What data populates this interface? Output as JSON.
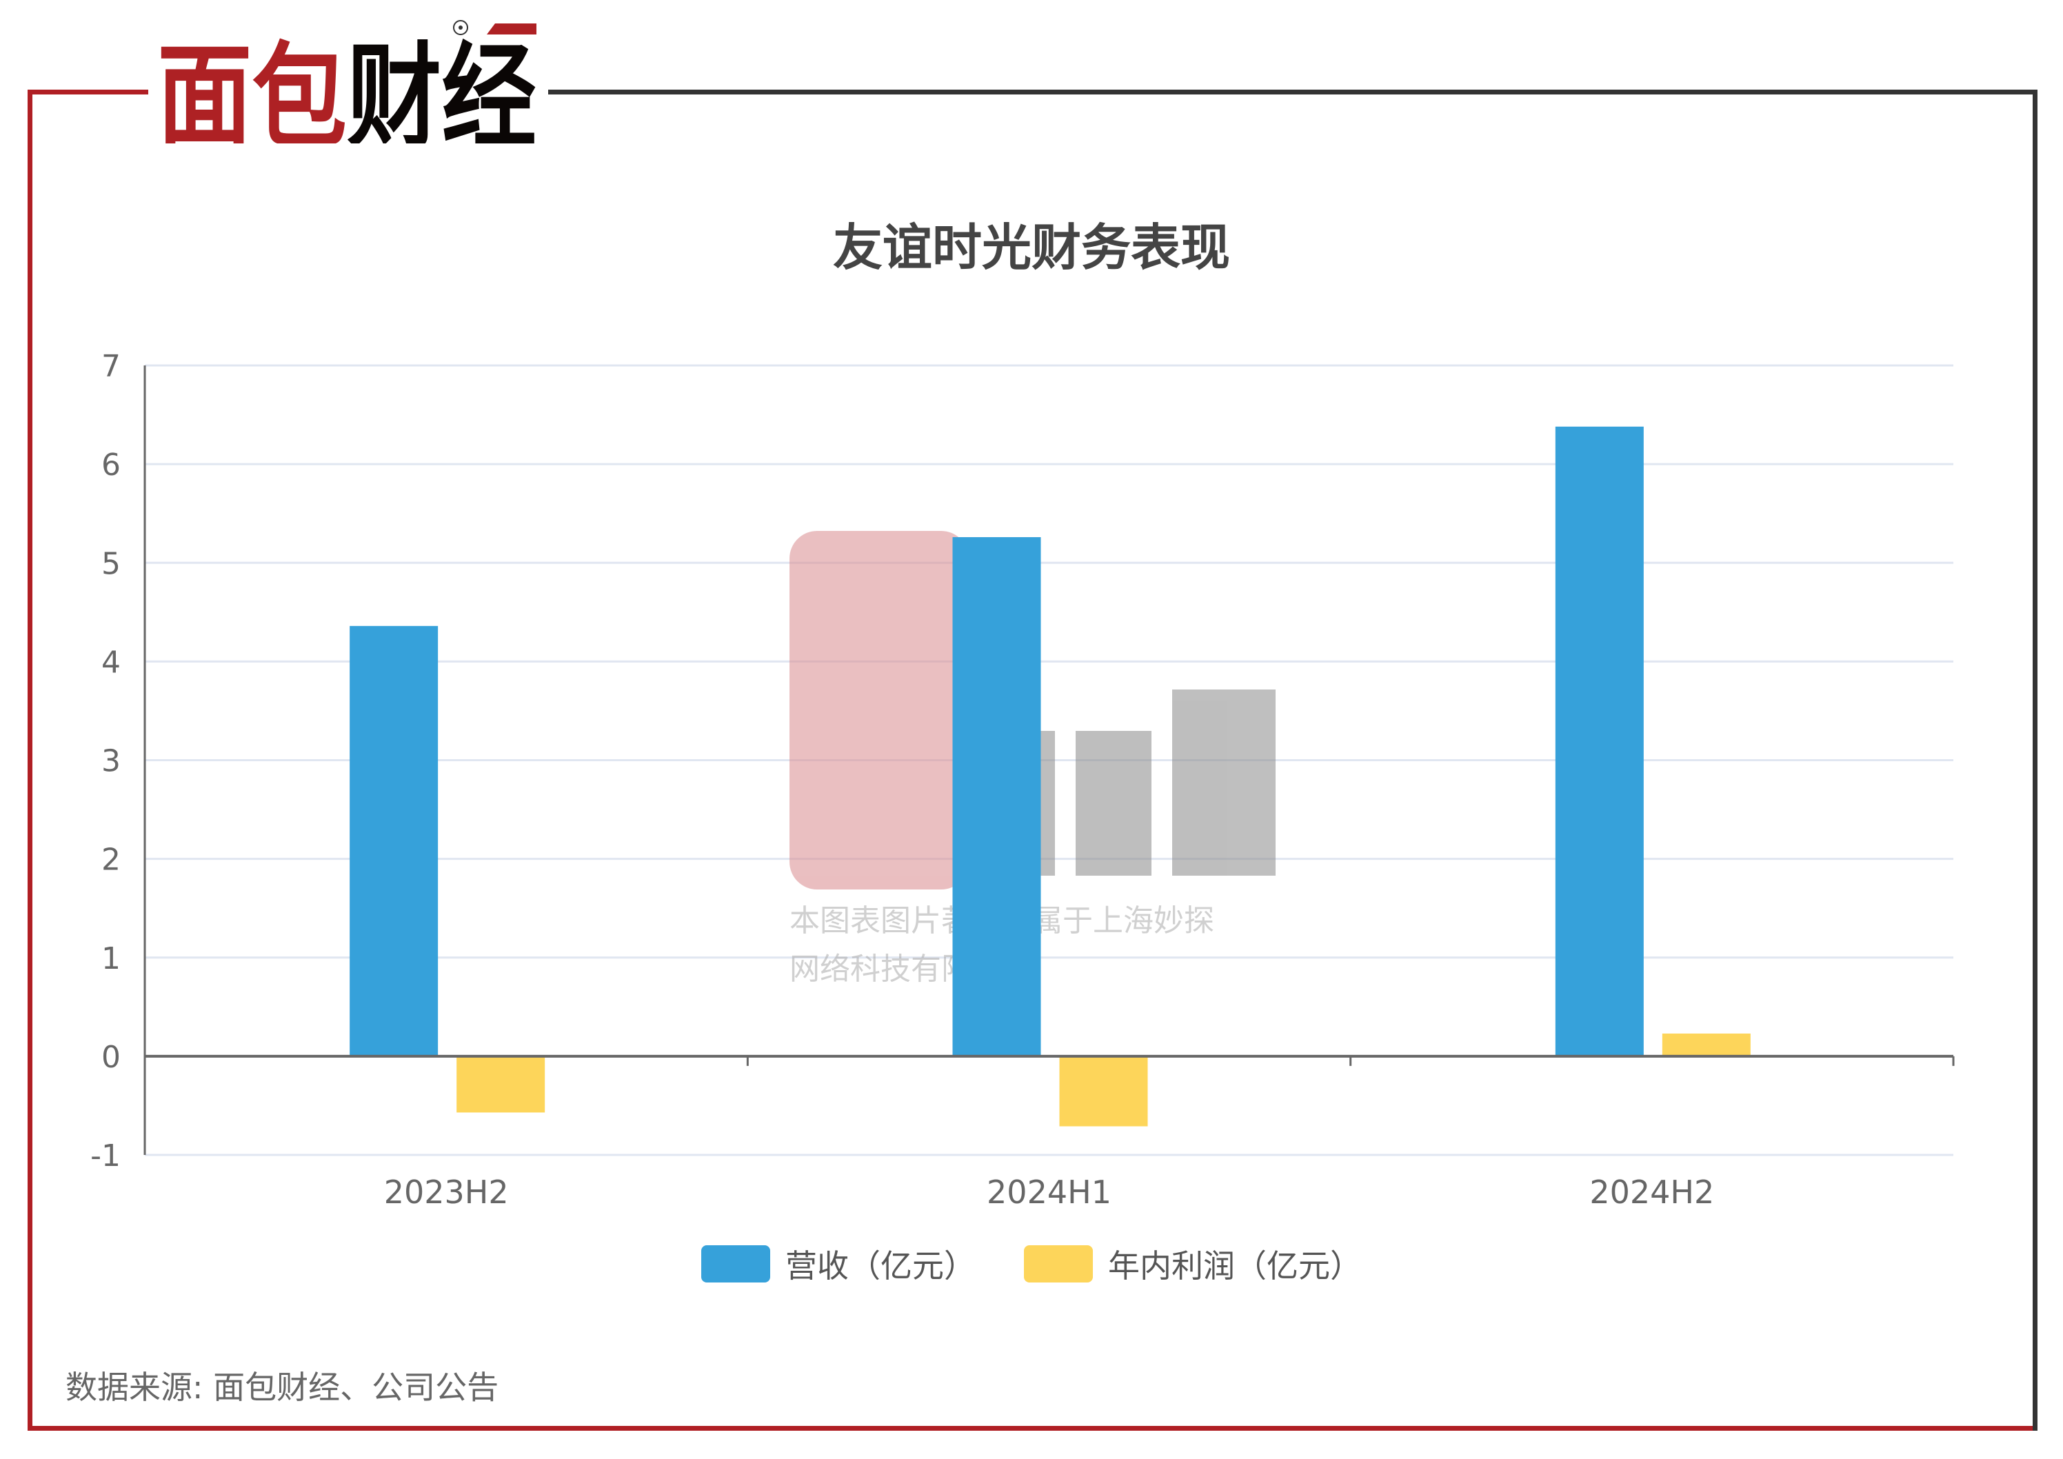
{
  "brand": {
    "logo_text": "面包财经",
    "watermark_line1": "本图表图片著作权属于上海妙探",
    "watermark_line2": "网络科技有限公司"
  },
  "chart_data": {
    "type": "bar",
    "title": "友谊时光财务表现",
    "categories": [
      "2023H2",
      "2024H1",
      "2024H2"
    ],
    "series": [
      {
        "name": "营收（亿元）",
        "color": "#36A1DA",
        "values": [
          4.36,
          5.26,
          6.38
        ]
      },
      {
        "name": "年内利润（亿元）",
        "color": "#FDD55A",
        "values": [
          -0.57,
          -0.71,
          0.23
        ]
      }
    ],
    "ylim": [
      -1,
      7
    ],
    "yticks": [
      "-1",
      "0",
      "1",
      "2",
      "3",
      "4",
      "5",
      "6",
      "7"
    ],
    "grid": true,
    "legend": "bottom"
  },
  "source": "数据来源: 面包财经、公司公告",
  "colors": {
    "frame_red": "#B01F24",
    "frame_dark": "#333333",
    "grid": "#E0E6F1"
  }
}
